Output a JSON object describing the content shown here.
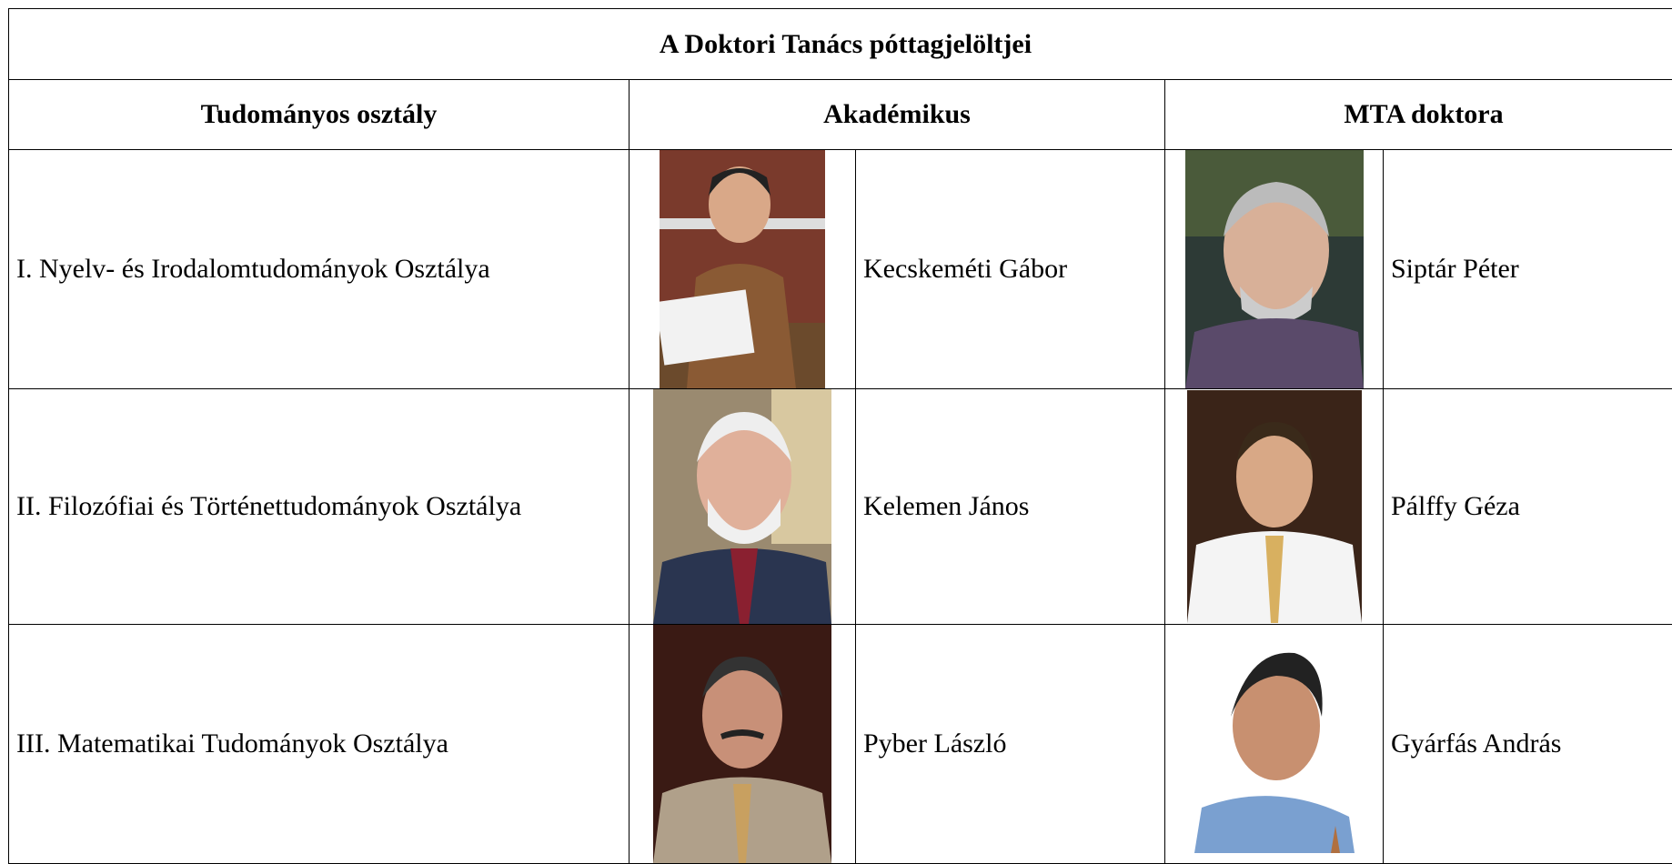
{
  "table": {
    "title": "A Doktori Tanács póttagjelöltjei",
    "columns": [
      "Tudományos osztály",
      "Akadémikus",
      "MTA doktora"
    ],
    "rows": [
      [
        "I. Nyelv- és Irodalomtudományok Osztálya",
        "Kecskeméti Gábor",
        "Siptár Péter"
      ],
      [
        "II. Filozófiai és Történettudományok Osztálya",
        "Kelemen János",
        "Pálffy Géza"
      ],
      [
        "III. Matematikai Tudományok Osztálya",
        "Pyber László",
        "Gyárfás András"
      ]
    ]
  }
}
